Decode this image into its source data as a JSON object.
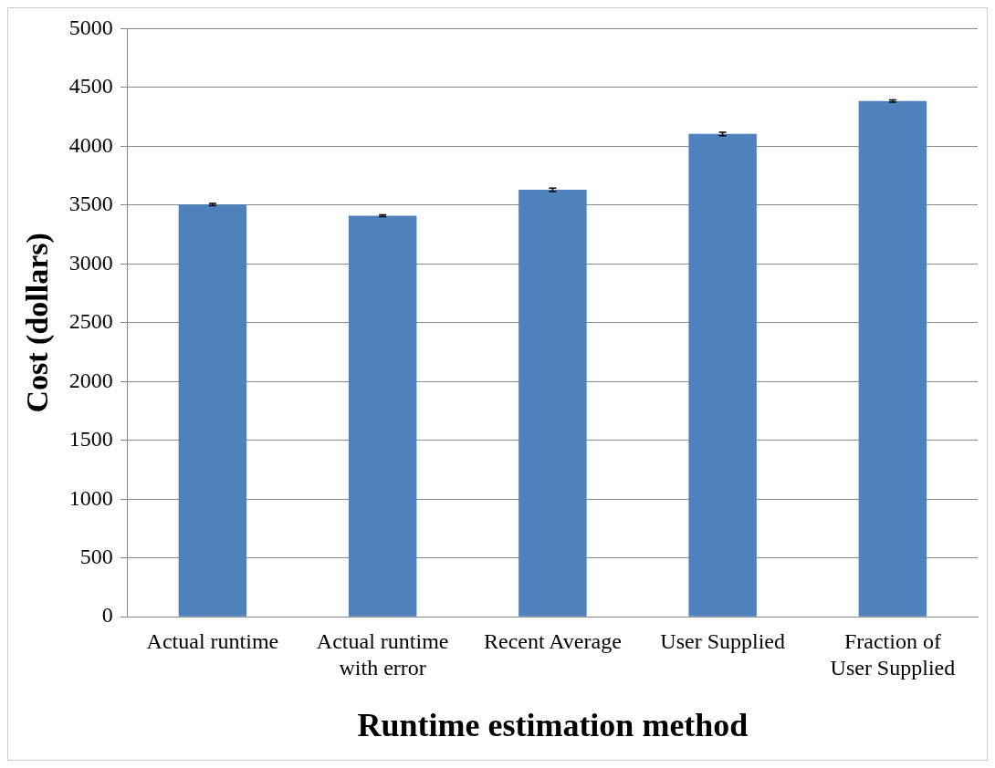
{
  "chart_data": {
    "type": "bar",
    "xlabel": "Runtime estimation method",
    "ylabel": "Cost (dollars)",
    "categories": [
      "Actual runtime",
      "Actual runtime with error",
      "Recent Average",
      "User Supplied",
      "Fraction of User Supplied"
    ],
    "values": [
      3505,
      3410,
      3630,
      4105,
      4385
    ],
    "errors": [
      10,
      8,
      15,
      15,
      10
    ],
    "color": "#4f81bd",
    "ylim": [
      0,
      5000
    ],
    "yticks": [
      0,
      500,
      1000,
      1500,
      2000,
      2500,
      3000,
      3500,
      4000,
      4500,
      5000
    ],
    "grid": "y"
  }
}
